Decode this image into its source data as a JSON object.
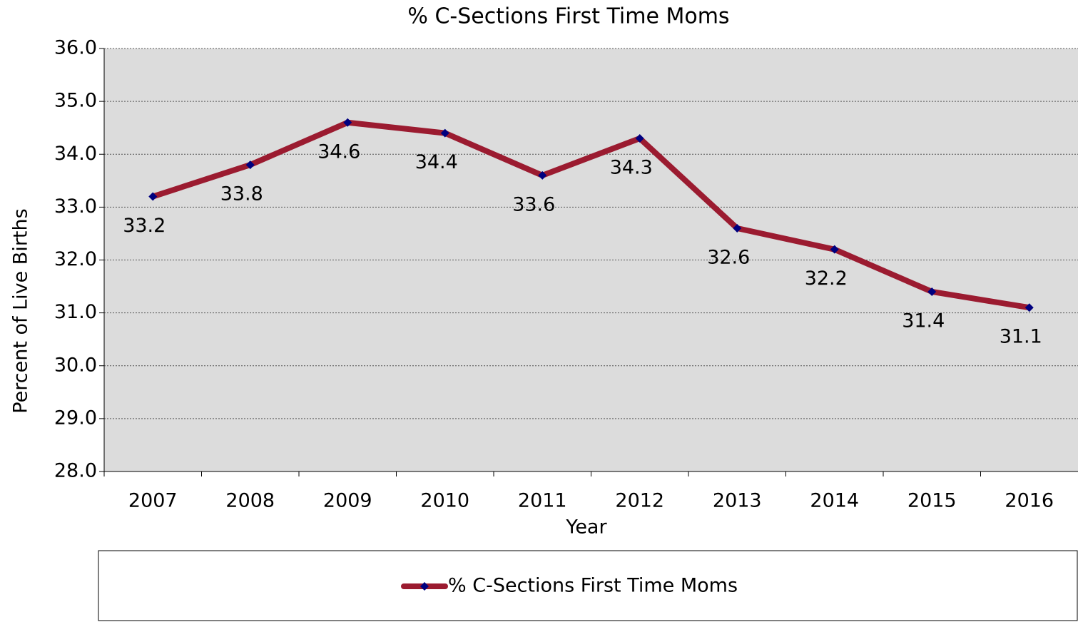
{
  "chart_data": {
    "type": "line",
    "title": "% C-Sections First Time Moms",
    "x_label": "Year",
    "y_label": "Percent of Live Births",
    "categories": [
      "2007",
      "2008",
      "2009",
      "2010",
      "2011",
      "2012",
      "2013",
      "2014",
      "2015",
      "2016"
    ],
    "series": [
      {
        "name": "% C-Sections First Time Moms",
        "color": "#9b1b30",
        "marker_color": "#00007f",
        "values": [
          33.2,
          33.8,
          34.6,
          34.4,
          33.6,
          34.3,
          32.6,
          32.2,
          31.4,
          31.1
        ]
      }
    ],
    "ylim": [
      28,
      36
    ],
    "yticks": [
      {
        "value": 28,
        "label": "28.0"
      },
      {
        "value": 29,
        "label": "29.0"
      },
      {
        "value": 30,
        "label": "30.0"
      },
      {
        "value": 31,
        "label": "31.0"
      },
      {
        "value": 32,
        "label": "32.0"
      },
      {
        "value": 33,
        "label": "33.0"
      },
      {
        "value": 34,
        "label": "34.0"
      },
      {
        "value": 35,
        "label": "35.0"
      },
      {
        "value": 36,
        "label": "36.0"
      }
    ],
    "grid": true,
    "legend": "bottom"
  }
}
